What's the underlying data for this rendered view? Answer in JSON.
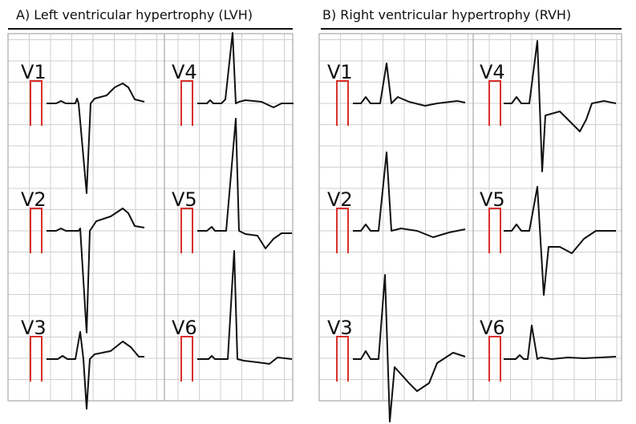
{
  "panels": [
    {
      "title": "A) Left ventricular hypertrophy (LVH)",
      "leads": [
        "V1",
        "V2",
        "V3",
        "V4",
        "V5",
        "V6"
      ]
    },
    {
      "title": "B) Right ventricular hypertrophy (RVH)",
      "leads": [
        "V1",
        "V2",
        "V3",
        "V4",
        "V5",
        "V6"
      ]
    }
  ]
}
